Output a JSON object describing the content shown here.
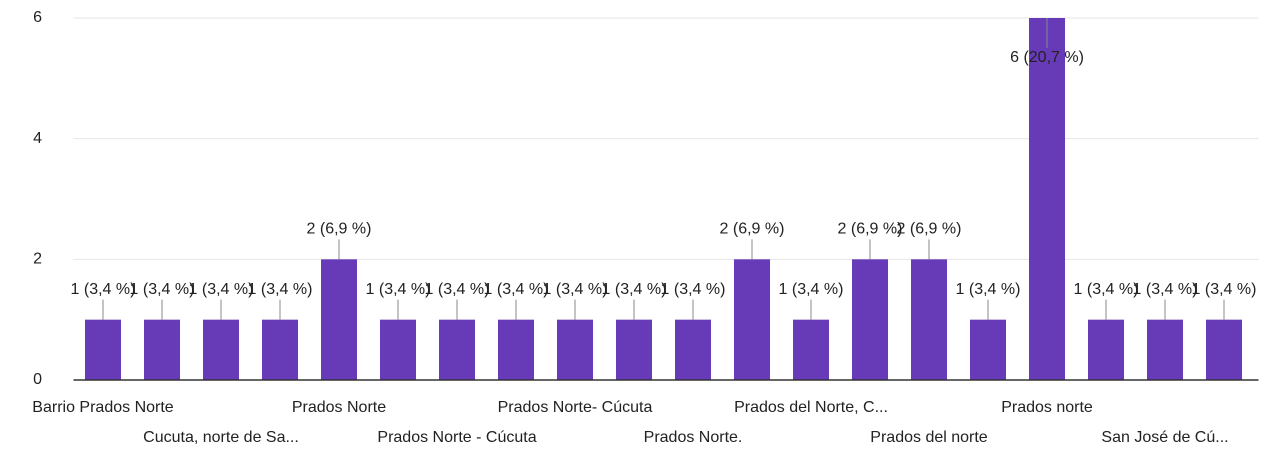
{
  "chart_data": {
    "type": "bar",
    "categories": [
      "Barrio Prados Norte",
      null,
      "Cucuta, norte de Sa...",
      null,
      "Prados Norte",
      null,
      "Prados Norte - Cúcuta",
      null,
      "Prados Norte- Cúcuta",
      null,
      "Prados Norte.",
      null,
      "Prados del Norte, C...",
      null,
      "Prados del norte",
      null,
      "Prados norte",
      null,
      "San José de Cú...",
      null
    ],
    "values": [
      1,
      1,
      1,
      1,
      2,
      1,
      1,
      1,
      1,
      1,
      1,
      2,
      1,
      2,
      2,
      1,
      6,
      1,
      1,
      1
    ],
    "value_labels": [
      "1 (3,4 %)",
      "1 (3,4 %)",
      "1 (3,4 %)",
      "1 (3,4 %)",
      "2 (6,9 %)",
      "1 (3,4 %)",
      "1 (3,4 %)",
      "1 (3,4 %)",
      "1 (3,4 %)",
      "1 (3,4 %)",
      "1 (3,4 %)",
      "2 (6,9 %)",
      "1 (3,4 %)",
      "2 (6,9 %)",
      "2 (6,9 %)",
      "1 (3,4 %)",
      "6 (20,7 %)",
      "1 (3,4 %)",
      "1 (3,4 %)",
      "1 (3,4 %)"
    ],
    "color": "#673ab7",
    "ylim": [
      0,
      6
    ],
    "yticks": [
      0,
      2,
      4,
      6
    ],
    "grid": true
  }
}
